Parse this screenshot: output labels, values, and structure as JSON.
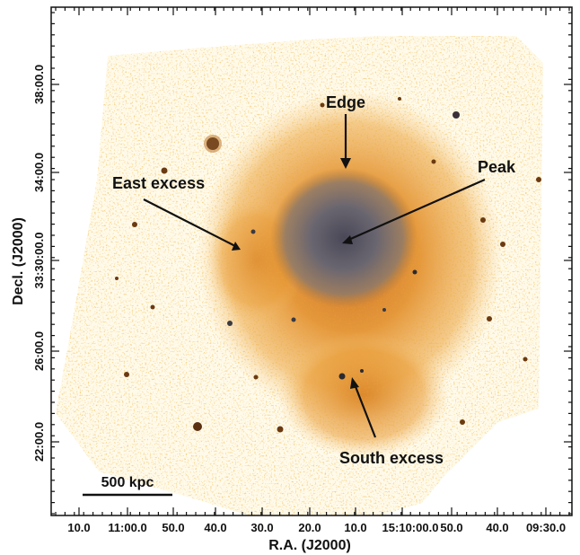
{
  "axes": {
    "x_title": "R.A. (J2000)",
    "y_title": "Decl. (J2000)",
    "x_ticks": [
      "10.0",
      "11:00.0",
      "50.0",
      "40.0",
      "30.0",
      "20.0",
      "10.0",
      "15:10:00.0",
      "50.0",
      "40.0",
      "09:30.0"
    ],
    "y_ticks": [
      "38:00.0",
      "34:00.0",
      "33:30:00.0",
      "26:00.0",
      "22:00.0"
    ]
  },
  "annotations": {
    "edge": "Edge",
    "peak": "Peak",
    "east_excess": "East excess",
    "south_excess": "South excess"
  },
  "scale_bar": {
    "label": "500 kpc"
  },
  "colors": {
    "background_light": "#fff9e6",
    "emission_orange": "#e8901a",
    "core_gray": "#6a6a78",
    "frame": "#111111"
  }
}
